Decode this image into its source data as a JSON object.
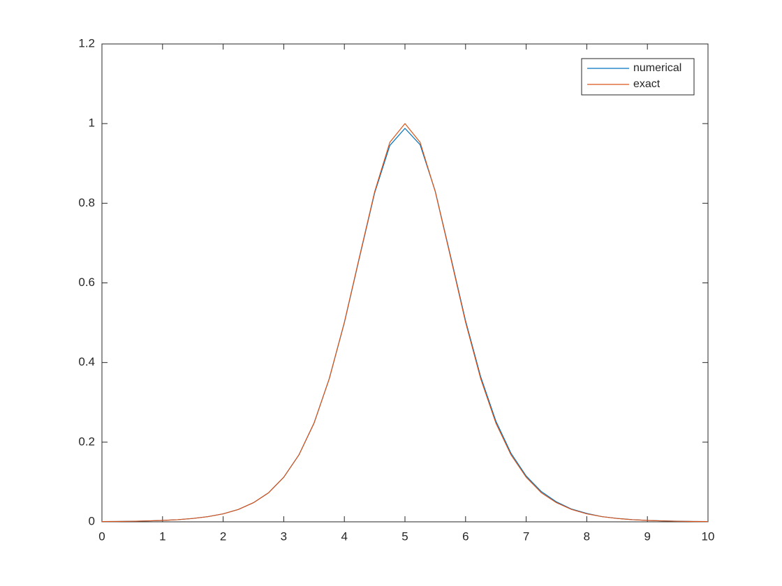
{
  "chart_data": {
    "type": "line",
    "x": [
      0,
      0.25,
      0.5,
      0.75,
      1,
      1.25,
      1.5,
      1.75,
      2,
      2.25,
      2.5,
      2.75,
      3,
      3.25,
      3.5,
      3.75,
      4,
      4.25,
      4.5,
      4.75,
      5,
      5.25,
      5.5,
      5.75,
      6,
      6.25,
      6.5,
      6.75,
      7,
      7.25,
      7.5,
      7.75,
      8,
      8.25,
      8.5,
      8.75,
      9,
      9.25,
      9.5,
      9.75,
      10
    ],
    "series": [
      {
        "name": "numerical",
        "color": "#0072BD",
        "values": [
          0.0006,
          0.0009,
          0.0014,
          0.0023,
          0.0035,
          0.0054,
          0.0084,
          0.013,
          0.02,
          0.031,
          0.048,
          0.073,
          0.112,
          0.168,
          0.248,
          0.359,
          0.5,
          0.664,
          0.826,
          0.945,
          0.988,
          0.947,
          0.83,
          0.669,
          0.505,
          0.364,
          0.253,
          0.172,
          0.115,
          0.076,
          0.05,
          0.032,
          0.021,
          0.013,
          0.0086,
          0.0056,
          0.0036,
          0.0024,
          0.0015,
          0.001,
          0.0006
        ]
      },
      {
        "name": "exact",
        "color": "#D95319",
        "values": [
          0.0006,
          0.0009,
          0.0014,
          0.0023,
          0.0035,
          0.0054,
          0.0084,
          0.013,
          0.02,
          0.031,
          0.048,
          0.073,
          0.112,
          0.168,
          0.248,
          0.359,
          0.501,
          0.666,
          0.829,
          0.953,
          1,
          0.953,
          0.829,
          0.666,
          0.501,
          0.359,
          0.248,
          0.168,
          0.112,
          0.073,
          0.048,
          0.031,
          0.02,
          0.013,
          0.0084,
          0.0054,
          0.0035,
          0.0023,
          0.0014,
          0.0009,
          0.0006
        ]
      }
    ],
    "xlim": [
      0,
      10
    ],
    "xticks": [
      0,
      1,
      2,
      3,
      4,
      5,
      6,
      7,
      8,
      9,
      10
    ],
    "ylim": [
      0,
      1.2
    ],
    "yticks": [
      0,
      0.2,
      0.4,
      0.6,
      0.8,
      1,
      1.2
    ],
    "legend": "northeast"
  }
}
